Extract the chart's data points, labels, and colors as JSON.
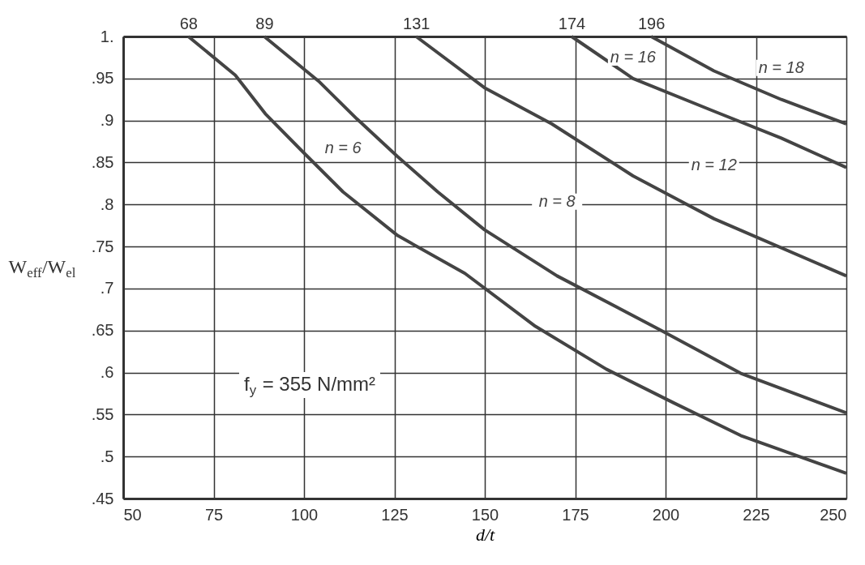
{
  "chart_data": {
    "type": "line",
    "xlabel": "d/t",
    "ylabel": "W$_{eff}$/W$_{el}$",
    "xlim": [
      50,
      250
    ],
    "xticks": [
      50,
      75,
      100,
      125,
      150,
      175,
      200,
      225,
      250
    ],
    "x2lim": [
      50,
      250
    ],
    "x2ticks": [
      68,
      89,
      131,
      174,
      196
    ],
    "ylim": [
      0.45,
      1.0
    ],
    "yticks": [
      {
        "value": 0.45,
        "label": ".45"
      },
      {
        "value": 0.5,
        "label": ".5"
      },
      {
        "value": 0.55,
        "label": ".55"
      },
      {
        "value": 0.6,
        "label": ".6"
      },
      {
        "value": 0.65,
        "label": ".65"
      },
      {
        "value": 0.7,
        "label": ".7"
      },
      {
        "value": 0.75,
        "label": ".75"
      },
      {
        "value": 0.8,
        "label": ".8"
      },
      {
        "value": 0.85,
        "label": ".85"
      },
      {
        "value": 0.9,
        "label": ".9"
      },
      {
        "value": 0.95,
        "label": ".95"
      },
      {
        "value": 1.0,
        "label": "1."
      }
    ],
    "grid": true,
    "marker": "none",
    "line_style": "solid",
    "annotations": [
      "f$_{y}$ = 355 N/mm²"
    ],
    "series": [
      {
        "name": "n = 6",
        "color": "#444444",
        "x": [
          68,
          81,
          89.3,
          99.6,
          110.8,
          125.9,
          144.5,
          164,
          183.6,
          202.2,
          220.8,
          250
        ],
        "values": [
          1.0,
          0.954,
          0.908,
          0.863,
          0.815,
          0.763,
          0.718,
          0.655,
          0.604,
          0.564,
          0.525,
          0.48
        ]
      },
      {
        "name": "n = 8",
        "color": "#444444",
        "x": [
          89,
          104,
          114.6,
          125.9,
          137,
          149.9,
          170,
          198.4,
          220.8,
          250
        ],
        "values": [
          1.0,
          0.947,
          0.902,
          0.857,
          0.815,
          0.77,
          0.715,
          0.651,
          0.599,
          0.552
        ]
      },
      {
        "name": "n = 12",
        "color": "#444444",
        "x": [
          131,
          149.9,
          168.5,
          191,
          213.4,
          250
        ],
        "values": [
          1.0,
          0.939,
          0.896,
          0.834,
          0.783,
          0.715
        ]
      },
      {
        "name": "n = 16",
        "color": "#444444",
        "x": [
          174,
          191,
          213.4,
          232,
          250
        ],
        "values": [
          1.0,
          0.95,
          0.911,
          0.879,
          0.844
        ]
      },
      {
        "name": "n = 18",
        "color": "#444444",
        "x": [
          196,
          213.4,
          232,
          250
        ],
        "values": [
          1.0,
          0.959,
          0.925,
          0.896
        ]
      }
    ]
  }
}
